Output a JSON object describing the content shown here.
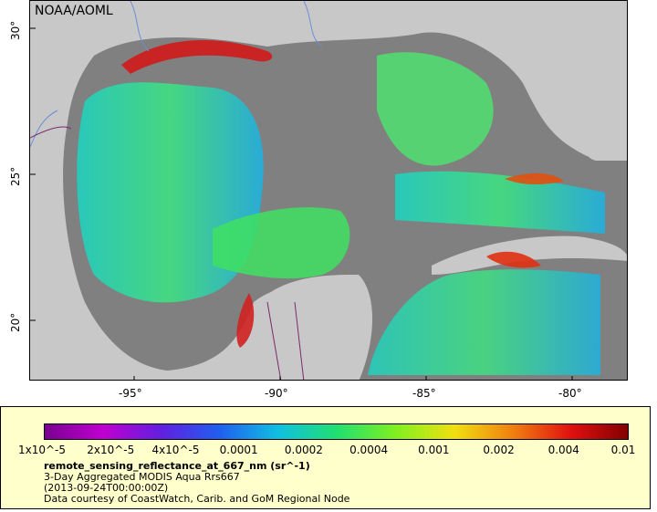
{
  "header": {
    "org": "NOAA/AOML"
  },
  "map": {
    "lat_ticks": [
      {
        "label": "30°",
        "lat": 30
      },
      {
        "label": "25°",
        "lat": 25
      },
      {
        "label": "20°",
        "lat": 20
      }
    ],
    "lon_ticks": [
      {
        "label": "-95°",
        "lon": -95
      },
      {
        "label": "-90°",
        "lon": -90
      },
      {
        "label": "-85°",
        "lon": -85
      },
      {
        "label": "-80°",
        "lon": -80
      }
    ],
    "colors": {
      "land": "#c8c8c8",
      "nodata": "#808080",
      "rivers": "#6a8fd8",
      "borders": "#7a2a6a"
    }
  },
  "legend": {
    "colorbar_ticks": [
      "1x10^-5",
      "2x10^-5",
      "4x10^-5",
      "0.0001",
      "0.0002",
      "0.0004",
      "0.001",
      "0.002",
      "0.004",
      "0.01"
    ],
    "title": "remote_sensing_reflectance_at_667_nm (sr^-1)",
    "line1": "3-Day Aggregated MODIS Aqua Rrs667",
    "line2": "(2013-09-24T00:00:00Z)",
    "line3": "Data courtesy of CoastWatch, Carib. and GoM Regional Node"
  }
}
